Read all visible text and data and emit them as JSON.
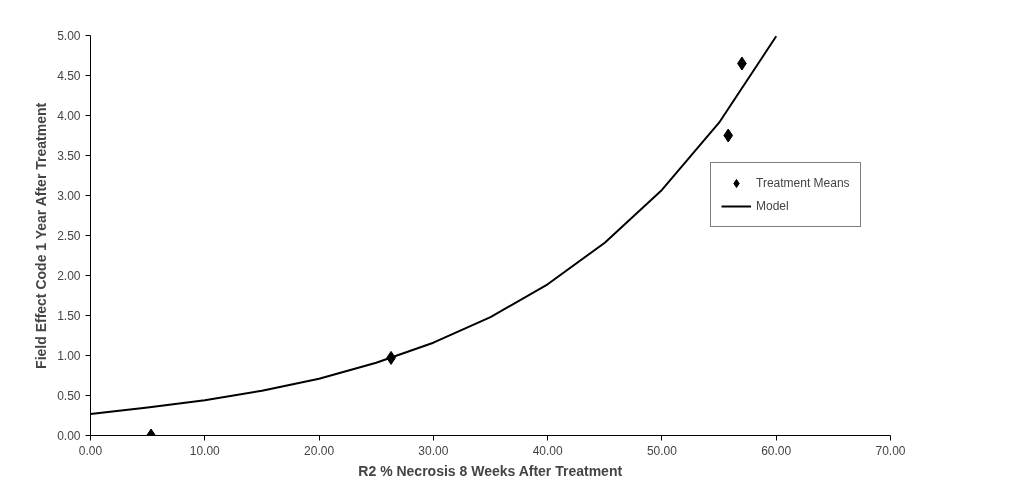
{
  "chart_data": {
    "type": "scatter",
    "xlabel": "R2 % Necrosis 8 Weeks After Treatment",
    "ylabel": "Field Effect Code 1 Year After Treatment",
    "xlim": [
      0,
      70
    ],
    "ylim": [
      0,
      5
    ],
    "xticks": [
      {
        "value": 0,
        "label": "0.00"
      },
      {
        "value": 10,
        "label": "10.00"
      },
      {
        "value": 20,
        "label": "20.00"
      },
      {
        "value": 30,
        "label": "30.00"
      },
      {
        "value": 40,
        "label": "40.00"
      },
      {
        "value": 50,
        "label": "50.00"
      },
      {
        "value": 60,
        "label": "60.00"
      },
      {
        "value": 70,
        "label": "70.00"
      }
    ],
    "yticks": [
      {
        "value": 0,
        "label": "0.00"
      },
      {
        "value": 0.5,
        "label": "0.50"
      },
      {
        "value": 1,
        "label": "1.00"
      },
      {
        "value": 1.5,
        "label": "1.50"
      },
      {
        "value": 2,
        "label": "2.00"
      },
      {
        "value": 2.5,
        "label": "2.50"
      },
      {
        "value": 3,
        "label": "3.00"
      },
      {
        "value": 3.5,
        "label": "3.50"
      },
      {
        "value": 4,
        "label": "4.00"
      },
      {
        "value": 4.5,
        "label": "4.50"
      },
      {
        "value": 5,
        "label": "5.00"
      }
    ],
    "grid": false,
    "legend": "top right",
    "series": [
      {
        "name": "Treatment Means",
        "marker": "diamond",
        "color": "#000000",
        "x": [
          5.3,
          26.3,
          55.8,
          57.0
        ],
        "values": [
          0.0,
          0.97,
          3.75,
          4.65
        ]
      },
      {
        "name": "Model",
        "type": "line",
        "marker": "none",
        "line_style": "solid",
        "color": "#000000",
        "x": [
          0,
          5,
          10,
          15,
          20,
          25,
          30,
          35,
          40,
          45,
          50,
          55,
          60
        ],
        "values": [
          0.27,
          0.35,
          0.44,
          0.56,
          0.71,
          0.91,
          1.16,
          1.48,
          1.89,
          2.41,
          3.07,
          3.91,
          4.99
        ]
      }
    ]
  }
}
